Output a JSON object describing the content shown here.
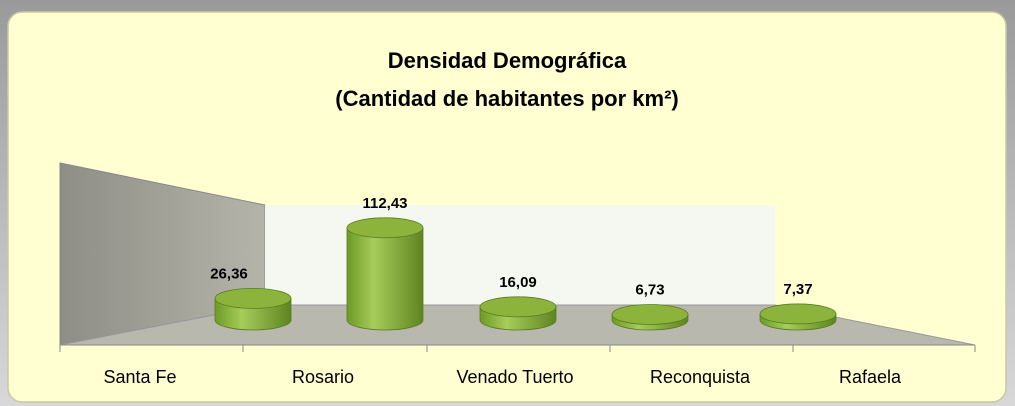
{
  "chart_data": {
    "type": "bar",
    "title": [
      "Densidad Demográfica",
      "(Cantidad de habitantes por km²)"
    ],
    "categories": [
      "Santa Fe",
      "Rosario",
      "Venado Tuerto",
      "Reconquista",
      "Rafaela"
    ],
    "values": [
      26.36,
      112.43,
      16.09,
      6.73,
      7.37
    ],
    "value_labels": [
      "26,36",
      "112,43",
      "16,09",
      "6,73",
      "7,37"
    ],
    "color": "#8cb43c"
  }
}
